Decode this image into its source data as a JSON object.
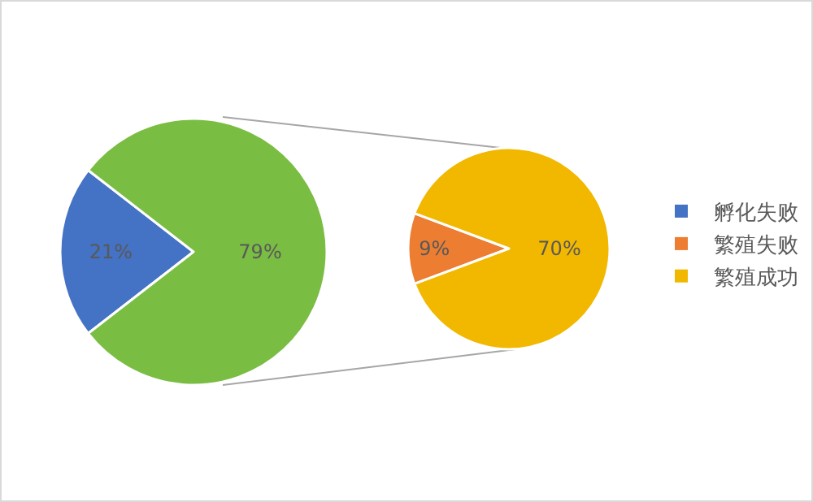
{
  "chart_data": [
    {
      "type": "pie",
      "categories": [
        "孵化失败",
        null
      ],
      "values": [
        21,
        79
      ],
      "colors": [
        "#4472c4",
        "#7abd43"
      ],
      "value_labels": [
        "21%",
        "79%"
      ],
      "legend": "right"
    },
    {
      "type": "pie",
      "categories": [
        "繁殖失败",
        "繁殖成功"
      ],
      "values": [
        9,
        70
      ],
      "colors": [
        "#ed7d31",
        "#f2b800"
      ],
      "value_labels": [
        "9%",
        "70%"
      ],
      "legend": "right"
    }
  ]
}
